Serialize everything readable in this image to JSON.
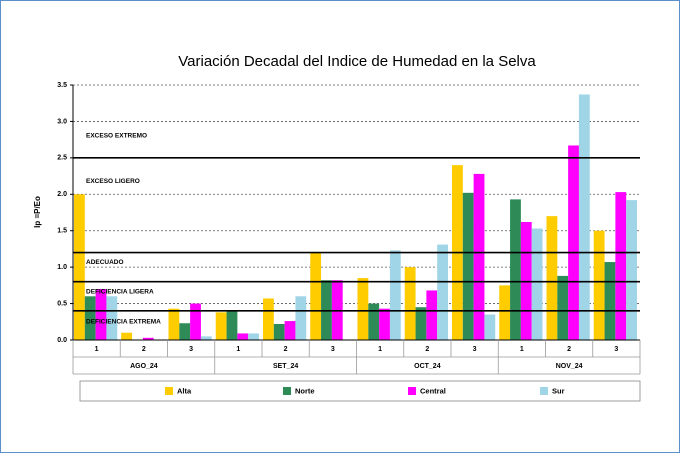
{
  "chart_data": {
    "type": "bar",
    "title": "Variación Decadal del Indice de Humedad en la Selva",
    "y_label": "Ip =P/Eo",
    "categories": [
      "1",
      "2",
      "3",
      "1",
      "2",
      "3",
      "1",
      "2",
      "3",
      "1",
      "2",
      "3"
    ],
    "groups": [
      "AGO_24",
      "SET_24",
      "OCT_24",
      "NOV_24"
    ],
    "series": [
      {
        "name": "Alta",
        "color": "#ffcc00",
        "values": [
          2.0,
          0.1,
          0.43,
          0.38,
          0.57,
          1.2,
          0.85,
          1.0,
          2.4,
          0.75,
          1.7,
          1.5
        ]
      },
      {
        "name": "Norte",
        "color": "#2e8b57",
        "values": [
          0.6,
          0.0,
          0.23,
          0.4,
          0.22,
          0.82,
          0.5,
          0.45,
          2.02,
          1.93,
          0.88,
          1.07
        ]
      },
      {
        "name": "Central",
        "color": "#ff00ff",
        "values": [
          0.7,
          0.03,
          0.5,
          0.09,
          0.26,
          0.82,
          0.43,
          0.68,
          2.28,
          1.62,
          2.67,
          2.03
        ]
      },
      {
        "name": "Sur",
        "color": "#9fd5e6",
        "values": [
          0.6,
          0.0,
          0.05,
          0.09,
          0.6,
          0.0,
          1.23,
          1.31,
          0.35,
          1.53,
          3.37,
          1.92
        ]
      }
    ],
    "ylim": [
      0,
      3.5
    ],
    "yticks": [
      {
        "value": 0,
        "label": "0.0"
      },
      0.5,
      {
        "value": 1,
        "label": "1.0"
      },
      1.5,
      {
        "value": 2,
        "label": "2.0"
      },
      2.5,
      {
        "value": 3,
        "label": "3.0"
      },
      3.5
    ],
    "grid": true,
    "threshold_lines": [
      2.5,
      1.2,
      0.8,
      0.4
    ],
    "zone_labels": [
      {
        "text": "EXCESO EXTREMO",
        "value": 2.8
      },
      {
        "text": "EXCESO LIGERO",
        "value": 2.18
      },
      {
        "text": "ADECUADO",
        "value": 1.07
      },
      {
        "text": "DEFICIENCIA LIGERA",
        "value": 0.66
      },
      {
        "text": "DEFICIENCIA EXTREMA",
        "value": 0.25
      }
    ],
    "legend": "bottom"
  }
}
